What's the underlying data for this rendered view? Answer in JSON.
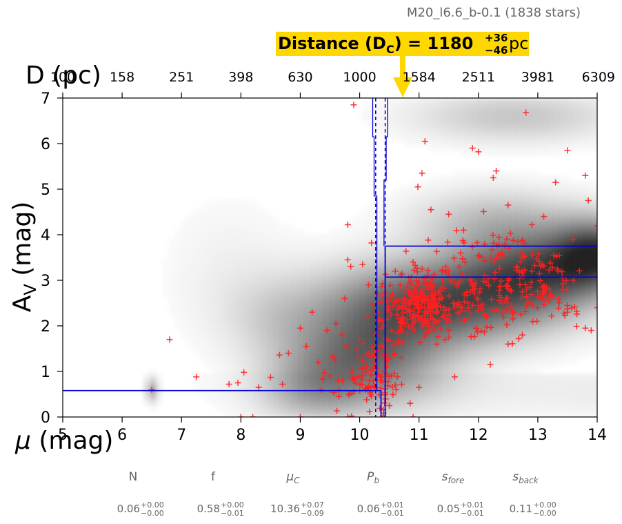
{
  "figure": {
    "star_count_label": "M20_l6.6_b-0.1 (1838 stars)",
    "distance_banner": {
      "label": "Distance (D",
      "subscript": "C",
      "equals_value": ") = 1180",
      "err_plus": "+36",
      "err_minus": "−46",
      "unit": "pc",
      "banner_color": "#FFD700"
    },
    "params": [
      {
        "name": "N",
        "italic": false,
        "sub": "",
        "value": "0.06",
        "err_plus": "+0.00",
        "err_minus": "−0.00"
      },
      {
        "name": "f",
        "italic": false,
        "sub": "",
        "value": "0.58",
        "err_plus": "+0.00",
        "err_minus": "−0.01"
      },
      {
        "name": "μ",
        "italic": true,
        "sub": "C",
        "value": "10.36",
        "err_plus": "+0.07",
        "err_minus": "−0.09"
      },
      {
        "name": "P",
        "italic": true,
        "sub": "b",
        "value": "0.06",
        "err_plus": "+0.01",
        "err_minus": "−0.01"
      },
      {
        "name": "s",
        "italic": true,
        "sub": "fore",
        "value": "0.05",
        "err_plus": "+0.01",
        "err_minus": "−0.01"
      },
      {
        "name": "s",
        "italic": true,
        "sub": "back",
        "value": "0.11",
        "err_plus": "+0.00",
        "err_minus": "−0.00"
      }
    ]
  },
  "chart_data": {
    "type": "scatter",
    "xlabel": "μ (mag)",
    "ylabel": "A_V (mag)",
    "top_axis_label": "D (pc)",
    "xlim": [
      5,
      14
    ],
    "ylim": [
      0,
      7
    ],
    "xticks": [
      "5",
      "6",
      "7",
      "8",
      "9",
      "10",
      "11",
      "12",
      "13",
      "14"
    ],
    "yticks": [
      "0",
      "1",
      "2",
      "3",
      "4",
      "5",
      "6",
      "7"
    ],
    "top_ticks": [
      {
        "mu": 5,
        "label": "100"
      },
      {
        "mu": 6,
        "label": "158"
      },
      {
        "mu": 7,
        "label": "251"
      },
      {
        "mu": 8,
        "label": "398"
      },
      {
        "mu": 9,
        "label": "630"
      },
      {
        "mu": 10,
        "label": "1000"
      },
      {
        "mu": 11,
        "label": "1584"
      },
      {
        "mu": 12,
        "label": "2511"
      },
      {
        "mu": 13,
        "label": "3981"
      },
      {
        "mu": 14,
        "label": "6309"
      }
    ],
    "colors": {
      "stars": "#FF2020",
      "model": "#0000DD",
      "density": "#000000"
    },
    "model": {
      "mu_c": 10.36,
      "mu_c_low": 10.27,
      "mu_c_high": 10.43,
      "av_fore": 0.58,
      "av_back_low": 3.07,
      "av_back_high": 3.75,
      "posterior_dip_av": 4.85
    },
    "density_blobs": [
      {
        "mu": 11.3,
        "av": 2.5,
        "smu": 1.3,
        "sav": 0.65,
        "w": 0.62
      },
      {
        "mu": 10.1,
        "av": 1.3,
        "smu": 0.9,
        "sav": 0.7,
        "w": 0.5
      },
      {
        "mu": 13.0,
        "av": 3.2,
        "smu": 0.9,
        "sav": 0.6,
        "w": 0.55
      },
      {
        "mu": 14.0,
        "av": 3.6,
        "smu": 0.5,
        "sav": 0.5,
        "w": 0.6
      },
      {
        "mu": 12.3,
        "av": 4.3,
        "smu": 1.0,
        "sav": 0.5,
        "w": 0.22
      },
      {
        "mu": 12.6,
        "av": 6.6,
        "smu": 1.2,
        "sav": 0.4,
        "w": 0.2
      },
      {
        "mu": 9.2,
        "av": 0.6,
        "smu": 0.6,
        "sav": 0.5,
        "w": 0.22
      },
      {
        "mu": 6.5,
        "av": 0.6,
        "smu": 0.07,
        "sav": 0.18,
        "w": 0.3
      },
      {
        "mu": 8.6,
        "av": 2.2,
        "smu": 0.6,
        "sav": 0.6,
        "w": 0.1
      },
      {
        "mu": 7.8,
        "av": 3.2,
        "smu": 0.8,
        "sav": 1.2,
        "w": 0.05
      }
    ],
    "stars_sample": [
      [
        6.5,
        0.6
      ],
      [
        6.8,
        1.7
      ],
      [
        7.25,
        0.88
      ],
      [
        7.8,
        0.72
      ],
      [
        7.95,
        0.75
      ],
      [
        8.05,
        0.98
      ],
      [
        8.3,
        0.65
      ],
      [
        8.5,
        0.87
      ],
      [
        8.65,
        1.36
      ],
      [
        8.7,
        0.72
      ],
      [
        8.8,
        1.4
      ],
      [
        9.0,
        1.95
      ],
      [
        9.1,
        1.55
      ],
      [
        9.2,
        2.3
      ],
      [
        9.3,
        1.2
      ],
      [
        9.45,
        1.9
      ],
      [
        9.55,
        1.33
      ],
      [
        9.6,
        2.05
      ],
      [
        9.7,
        1.8
      ],
      [
        9.75,
        2.6
      ],
      [
        9.8,
        4.22
      ],
      [
        9.8,
        3.45
      ],
      [
        9.85,
        3.3
      ],
      [
        9.9,
        6.85
      ],
      [
        10.05,
        3.35
      ],
      [
        10.15,
        2.9
      ],
      [
        10.2,
        3.82
      ],
      [
        10.3,
        2.7
      ],
      [
        8.0,
        0.0
      ],
      [
        8.2,
        0.0
      ],
      [
        9.0,
        0.0
      ],
      [
        9.8,
        0.0
      ],
      [
        10.9,
        0.0
      ],
      [
        10.5,
        0.25
      ],
      [
        10.6,
        0.7
      ],
      [
        10.7,
        1.3
      ],
      [
        10.85,
        0.3
      ],
      [
        11.0,
        0.65
      ],
      [
        11.1,
        6.05
      ],
      [
        11.05,
        5.35
      ],
      [
        10.98,
        5.05
      ],
      [
        11.2,
        4.55
      ],
      [
        11.5,
        4.45
      ],
      [
        11.75,
        4.1
      ],
      [
        11.9,
        5.9
      ],
      [
        12.0,
        5.82
      ],
      [
        12.25,
        5.25
      ],
      [
        12.3,
        5.4
      ],
      [
        12.5,
        4.65
      ],
      [
        12.8,
        6.68
      ],
      [
        13.3,
        5.15
      ],
      [
        13.5,
        5.85
      ],
      [
        13.8,
        5.3
      ],
      [
        13.85,
        4.75
      ],
      [
        13.1,
        4.4
      ],
      [
        12.9,
        4.22
      ],
      [
        12.75,
        3.5
      ],
      [
        12.6,
        2.3
      ],
      [
        12.5,
        1.6
      ],
      [
        12.2,
        1.15
      ],
      [
        11.6,
        0.88
      ],
      [
        13.2,
        2.8
      ],
      [
        13.5,
        2.3
      ],
      [
        13.8,
        1.95
      ],
      [
        14.0,
        4.2
      ],
      [
        14.0,
        2.4
      ],
      [
        13.9,
        1.9
      ],
      [
        13.6,
        3.0
      ],
      [
        11.4,
        2.2
      ],
      [
        11.2,
        2.9
      ],
      [
        11.0,
        2.6
      ],
      [
        10.8,
        2.3
      ],
      [
        10.7,
        1.9
      ],
      [
        11.3,
        1.6
      ],
      [
        11.6,
        2.4
      ],
      [
        11.9,
        2.8
      ],
      [
        12.1,
        3.1
      ],
      [
        12.4,
        2.5
      ],
      [
        12.7,
        2.9
      ],
      [
        12.9,
        3.2
      ],
      [
        10.6,
        3.2
      ],
      [
        10.9,
        3.4
      ],
      [
        11.15,
        3.1
      ],
      [
        11.45,
        3.3
      ],
      [
        11.7,
        3.6
      ],
      [
        12.2,
        3.5
      ],
      [
        12.45,
        3.8
      ],
      [
        10.55,
        2.7
      ],
      [
        10.75,
        2.6
      ],
      [
        11.05,
        2.0
      ],
      [
        11.25,
        1.9
      ],
      [
        11.5,
        1.75
      ],
      [
        10.6,
        1.6
      ],
      [
        10.45,
        1.1
      ],
      [
        10.35,
        0.9
      ],
      [
        10.1,
        0.6
      ],
      [
        9.9,
        0.8
      ],
      [
        9.65,
        0.45
      ],
      [
        9.5,
        0.9
      ],
      [
        9.35,
        0.6
      ],
      [
        10.0,
        1.7
      ],
      [
        10.2,
        1.4
      ],
      [
        10.4,
        2.0
      ]
    ]
  }
}
